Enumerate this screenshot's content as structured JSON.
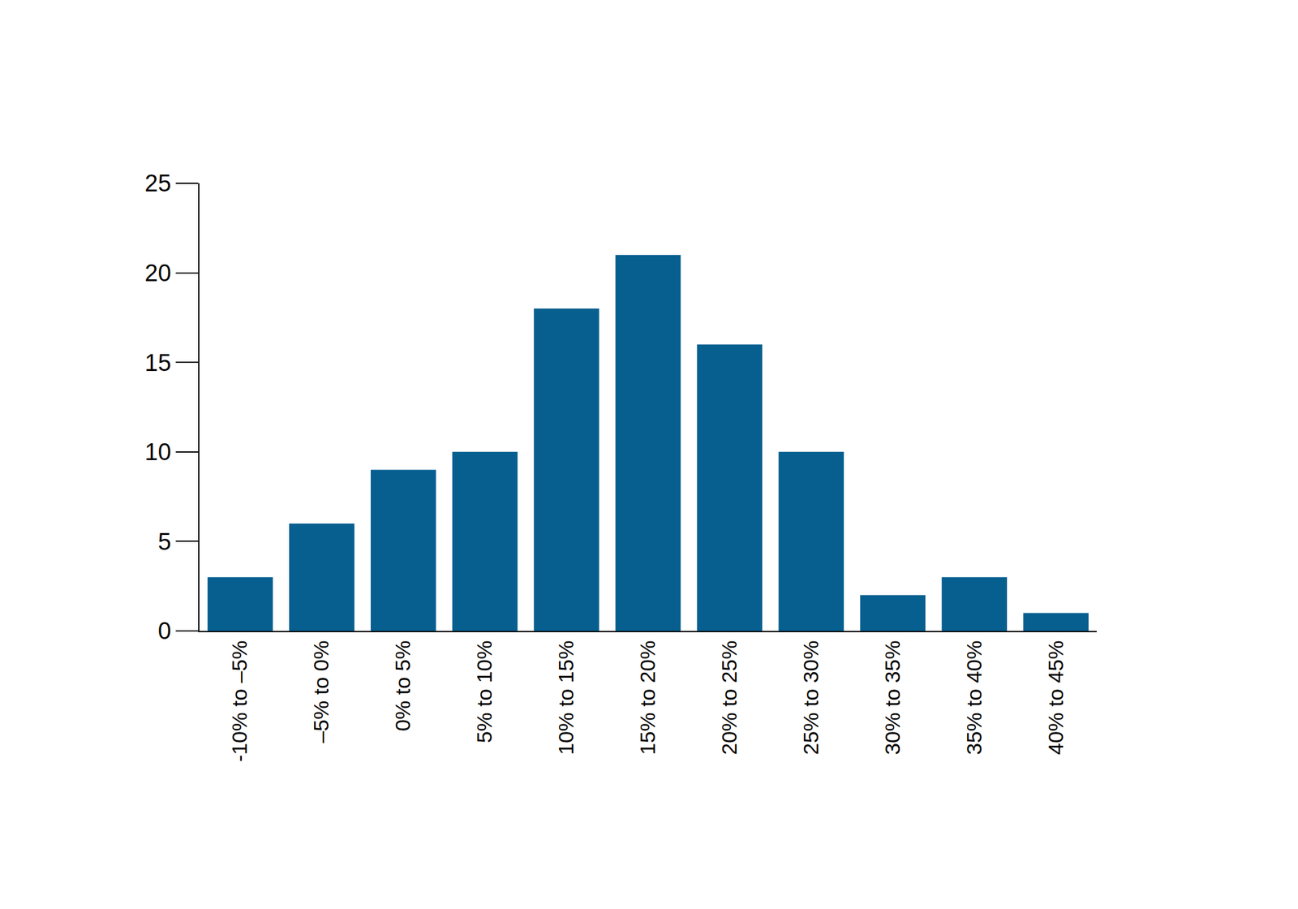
{
  "chart_data": {
    "type": "bar",
    "categories": [
      "-10% to –5%",
      "–5% to 0%",
      "0% to 5%",
      "5% to 10%",
      "10% to 15%",
      "15% to 20%",
      "20% to 25%",
      "25% to 30%",
      "30% to 35%",
      "35% to 40%",
      "40% to 45%"
    ],
    "values": [
      3,
      6,
      9,
      10,
      18,
      21,
      16,
      10,
      2,
      3,
      1
    ],
    "color": "#065f8f",
    "ylim": [
      0,
      25
    ],
    "yticks": [
      0,
      5,
      10,
      15,
      20,
      25
    ],
    "grid": false
  }
}
